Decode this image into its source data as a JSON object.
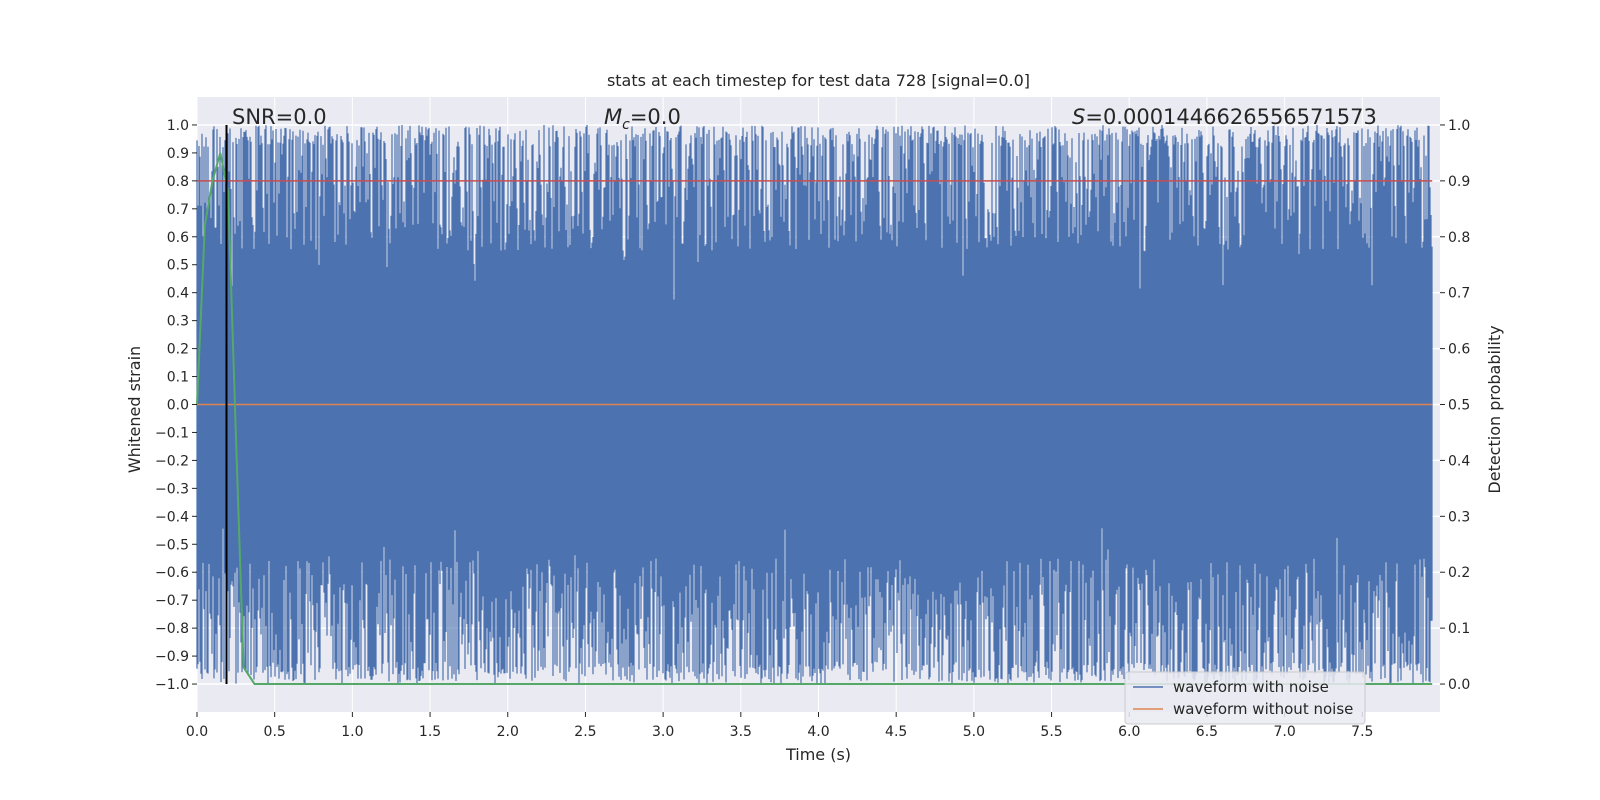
{
  "chart_data": {
    "type": "line",
    "title": "stats at each timestep for test data 728 [signal=0.0]",
    "xlabel": "Time (s)",
    "ylabel_left": "Whitened strain",
    "ylabel_right": "Detection probability",
    "xlim": [
      0.0,
      8.0
    ],
    "ylim_left": [
      -1.1,
      1.1
    ],
    "ylim_right": [
      -0.05,
      1.05
    ],
    "x_ticks": [
      0.0,
      0.5,
      1.0,
      1.5,
      2.0,
      2.5,
      3.0,
      3.5,
      4.0,
      4.5,
      5.0,
      5.5,
      6.0,
      6.5,
      7.0,
      7.5
    ],
    "x_tick_labels": [
      "0.0",
      "0.5",
      "1.0",
      "1.5",
      "2.0",
      "2.5",
      "3.0",
      "3.5",
      "4.0",
      "4.5",
      "5.0",
      "5.5",
      "6.0",
      "6.5",
      "7.0",
      "7.5"
    ],
    "y_left_ticks": [
      1.0,
      0.9,
      0.8,
      0.7,
      0.6,
      0.5,
      0.4,
      0.3,
      0.2,
      0.1,
      0.0,
      -0.1,
      -0.2,
      -0.3,
      -0.4,
      -0.5,
      -0.6,
      -0.7,
      -0.8,
      -0.9,
      -1.0
    ],
    "y_left_tick_labels": [
      "1.0",
      "0.9",
      "0.8",
      "0.7",
      "0.6",
      "0.5",
      "0.4",
      "0.3",
      "0.2",
      "0.1",
      "0.0",
      "−0.1",
      "−0.2",
      "−0.3",
      "−0.4",
      "−0.5",
      "−0.6",
      "−0.7",
      "−0.8",
      "−0.9",
      "−1.0"
    ],
    "y_right_ticks": [
      1.0,
      0.9,
      0.8,
      0.7,
      0.6,
      0.5,
      0.4,
      0.3,
      0.2,
      0.1,
      0.0
    ],
    "y_right_tick_labels": [
      "1.0",
      "0.9",
      "0.8",
      "0.7",
      "0.6",
      "0.5",
      "0.4",
      "0.3",
      "0.2",
      "0.1",
      "0.0"
    ],
    "annotations": {
      "snr": "SNR=0.0",
      "mc_symbol": "M",
      "mc_sub": "c",
      "mc_value": "=0.0",
      "s_symbol": "S",
      "s_value": "=0.00014466265565715​73"
    },
    "series": [
      {
        "name": "waveform with noise",
        "axis": "left",
        "color": "#4c72b0",
        "description": "dense noise band",
        "typical_upper": 0.9,
        "typical_lower": -0.9,
        "max": 1.0,
        "min": -1.0
      },
      {
        "name": "waveform without noise",
        "axis": "left",
        "color": "#dd8452",
        "x": [
          0.0,
          7.95
        ],
        "values": [
          0.0,
          0.0
        ]
      },
      {
        "name": "detection probability",
        "axis": "right",
        "color": "#55a868",
        "x": [
          0.0,
          0.05,
          0.1,
          0.15,
          0.2,
          0.25,
          0.3,
          0.37,
          7.95
        ],
        "values": [
          0.5,
          0.82,
          0.9,
          0.95,
          0.88,
          0.45,
          0.03,
          0.0,
          0.0
        ]
      },
      {
        "name": "detection threshold",
        "axis": "right",
        "color": "#c44e52",
        "x": [
          0.0,
          7.95
        ],
        "values": [
          0.9,
          0.9
        ]
      },
      {
        "name": "event marker",
        "axis": "left",
        "color": "#000000",
        "x": [
          0.19,
          0.19
        ],
        "values": [
          -1.0,
          1.0
        ]
      }
    ],
    "legend": {
      "position": "lower-right",
      "entries": [
        {
          "label": "waveform with noise",
          "color": "#4c72b0"
        },
        {
          "label": "waveform without noise",
          "color": "#dd8452"
        }
      ]
    },
    "grid": true,
    "colors": {
      "plot_background": "#eaeaf2",
      "grid": "#ffffff"
    }
  }
}
